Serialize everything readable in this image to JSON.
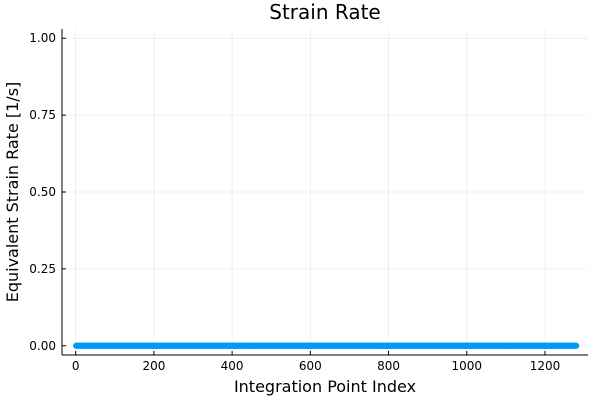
{
  "chart_data": {
    "type": "scatter",
    "title": "Strain Rate",
    "xlabel": "Integration Point Index",
    "ylabel": "Equivalent Strain Rate [1/s]",
    "xlim": [
      -35,
      1310
    ],
    "ylim": [
      -0.03,
      1.03
    ],
    "xticks": [
      0,
      200,
      400,
      600,
      800,
      1000,
      1200
    ],
    "xtick_labels": [
      "0",
      "200",
      "400",
      "600",
      "800",
      "1000",
      "1200"
    ],
    "yticks": [
      0.0,
      0.25,
      0.5,
      0.75,
      1.0
    ],
    "ytick_labels": [
      "0.00",
      "0.25",
      "0.50",
      "0.75",
      "1.00"
    ],
    "grid": true,
    "legend": "none",
    "series": [
      {
        "x_start": 1,
        "x_end": 1280,
        "y_constant": 0.0,
        "color": "#009AFA"
      }
    ]
  }
}
